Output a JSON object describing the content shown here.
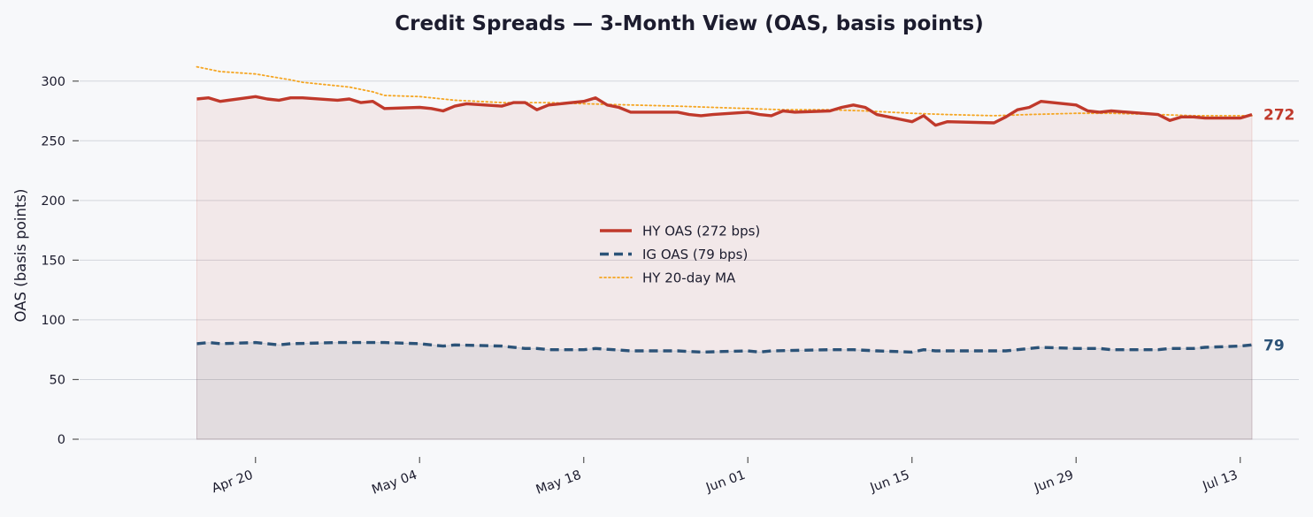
{
  "chart_data": {
    "type": "line",
    "title": "Credit Spreads — 3-Month View (OAS, basis points)",
    "ylabel": "OAS (basis points)",
    "xlabel": "",
    "ylim": [
      0,
      325
    ],
    "xlim": [
      "2026-04-05",
      "2026-07-18"
    ],
    "y_ticks": [
      0,
      50,
      100,
      150,
      200,
      250,
      300
    ],
    "y_tick_labels": [
      "0",
      "50",
      "100",
      "150",
      "200",
      "250",
      "300"
    ],
    "x_ticks": [
      "2026-04-20",
      "2026-05-04",
      "2026-05-18",
      "2026-06-01",
      "2026-06-15",
      "2026-06-29",
      "2026-07-13"
    ],
    "x_tick_labels": [
      "Apr 20",
      "May 04",
      "May 18",
      "Jun 01",
      "Jun 15",
      "Jun 29",
      "Jul 13"
    ],
    "grid": true,
    "legend_position": "center",
    "series": [
      {
        "name": "HY OAS  (272 bps)",
        "style": "solid",
        "color": "#c0392b",
        "end_label": "272",
        "fill": true,
        "points": [
          [
            "2026-04-15",
            285
          ],
          [
            "2026-04-16",
            286
          ],
          [
            "2026-04-17",
            283
          ],
          [
            "2026-04-20",
            287
          ],
          [
            "2026-04-21",
            285
          ],
          [
            "2026-04-22",
            284
          ],
          [
            "2026-04-23",
            286
          ],
          [
            "2026-04-24",
            286
          ],
          [
            "2026-04-27",
            284
          ],
          [
            "2026-04-28",
            285
          ],
          [
            "2026-04-29",
            282
          ],
          [
            "2026-04-30",
            283
          ],
          [
            "2026-05-01",
            277
          ],
          [
            "2026-05-04",
            278
          ],
          [
            "2026-05-05",
            277
          ],
          [
            "2026-05-06",
            275
          ],
          [
            "2026-05-07",
            279
          ],
          [
            "2026-05-08",
            281
          ],
          [
            "2026-05-11",
            279
          ],
          [
            "2026-05-12",
            282
          ],
          [
            "2026-05-13",
            282
          ],
          [
            "2026-05-14",
            276
          ],
          [
            "2026-05-15",
            280
          ],
          [
            "2026-05-18",
            283
          ],
          [
            "2026-05-19",
            286
          ],
          [
            "2026-05-20",
            280
          ],
          [
            "2026-05-21",
            278
          ],
          [
            "2026-05-22",
            274
          ],
          [
            "2026-05-25",
            274
          ],
          [
            "2026-05-26",
            274
          ],
          [
            "2026-05-27",
            272
          ],
          [
            "2026-05-28",
            271
          ],
          [
            "2026-05-29",
            272
          ],
          [
            "2026-06-01",
            274
          ],
          [
            "2026-06-02",
            272
          ],
          [
            "2026-06-03",
            271
          ],
          [
            "2026-06-04",
            275
          ],
          [
            "2026-06-05",
            274
          ],
          [
            "2026-06-08",
            275
          ],
          [
            "2026-06-09",
            278
          ],
          [
            "2026-06-10",
            280
          ],
          [
            "2026-06-11",
            278
          ],
          [
            "2026-06-12",
            272
          ],
          [
            "2026-06-15",
            266
          ],
          [
            "2026-06-16",
            271
          ],
          [
            "2026-06-17",
            263
          ],
          [
            "2026-06-18",
            266
          ],
          [
            "2026-06-22",
            265
          ],
          [
            "2026-06-23",
            270
          ],
          [
            "2026-06-24",
            276
          ],
          [
            "2026-06-25",
            278
          ],
          [
            "2026-06-26",
            283
          ],
          [
            "2026-06-29",
            280
          ],
          [
            "2026-06-30",
            275
          ],
          [
            "2026-07-01",
            274
          ],
          [
            "2026-07-02",
            275
          ],
          [
            "2026-07-06",
            272
          ],
          [
            "2026-07-07",
            267
          ],
          [
            "2026-07-08",
            270
          ],
          [
            "2026-07-09",
            270
          ],
          [
            "2026-07-10",
            269
          ],
          [
            "2026-07-13",
            269
          ],
          [
            "2026-07-14",
            272
          ]
        ]
      },
      {
        "name": "IG OAS  (79 bps)",
        "style": "dashed",
        "color": "#2c5378",
        "end_label": "79",
        "fill": true,
        "points": [
          [
            "2026-04-15",
            80
          ],
          [
            "2026-04-16",
            81
          ],
          [
            "2026-04-17",
            80
          ],
          [
            "2026-04-20",
            81
          ],
          [
            "2026-04-22",
            79
          ],
          [
            "2026-04-23",
            80
          ],
          [
            "2026-04-27",
            81
          ],
          [
            "2026-04-30",
            81
          ],
          [
            "2026-05-01",
            81
          ],
          [
            "2026-05-04",
            80
          ],
          [
            "2026-05-06",
            78
          ],
          [
            "2026-05-07",
            79
          ],
          [
            "2026-05-11",
            78
          ],
          [
            "2026-05-13",
            76
          ],
          [
            "2026-05-14",
            76
          ],
          [
            "2026-05-15",
            75
          ],
          [
            "2026-05-18",
            75
          ],
          [
            "2026-05-19",
            76
          ],
          [
            "2026-05-22",
            74
          ],
          [
            "2026-05-26",
            74
          ],
          [
            "2026-05-28",
            73
          ],
          [
            "2026-06-01",
            74
          ],
          [
            "2026-06-02",
            73
          ],
          [
            "2026-06-03",
            74
          ],
          [
            "2026-06-08",
            75
          ],
          [
            "2026-06-10",
            75
          ],
          [
            "2026-06-12",
            74
          ],
          [
            "2026-06-15",
            73
          ],
          [
            "2026-06-16",
            75
          ],
          [
            "2026-06-17",
            74
          ],
          [
            "2026-06-22",
            74
          ],
          [
            "2026-06-23",
            74
          ],
          [
            "2026-06-26",
            77
          ],
          [
            "2026-06-29",
            76
          ],
          [
            "2026-07-01",
            76
          ],
          [
            "2026-07-02",
            75
          ],
          [
            "2026-07-06",
            75
          ],
          [
            "2026-07-07",
            76
          ],
          [
            "2026-07-09",
            76
          ],
          [
            "2026-07-10",
            77
          ],
          [
            "2026-07-13",
            78
          ],
          [
            "2026-07-14",
            79
          ]
        ]
      },
      {
        "name": "HY 20-day MA",
        "style": "dotted",
        "color": "#f5a623",
        "points": [
          [
            "2026-04-15",
            312
          ],
          [
            "2026-04-17",
            308
          ],
          [
            "2026-04-20",
            306
          ],
          [
            "2026-04-23",
            301
          ],
          [
            "2026-04-24",
            299
          ],
          [
            "2026-04-28",
            295
          ],
          [
            "2026-04-30",
            291
          ],
          [
            "2026-05-01",
            288
          ],
          [
            "2026-05-04",
            287
          ],
          [
            "2026-05-07",
            284
          ],
          [
            "2026-05-11",
            282
          ],
          [
            "2026-05-15",
            282
          ],
          [
            "2026-05-18",
            281
          ],
          [
            "2026-05-22",
            280
          ],
          [
            "2026-05-26",
            279
          ],
          [
            "2026-05-29",
            278
          ],
          [
            "2026-06-01",
            277
          ],
          [
            "2026-06-04",
            276
          ],
          [
            "2026-06-08",
            276
          ],
          [
            "2026-06-11",
            275
          ],
          [
            "2026-06-15",
            273
          ],
          [
            "2026-06-18",
            272
          ],
          [
            "2026-06-22",
            271
          ],
          [
            "2026-06-25",
            272
          ],
          [
            "2026-06-29",
            273
          ],
          [
            "2026-07-02",
            273
          ],
          [
            "2026-07-06",
            272
          ],
          [
            "2026-07-09",
            271
          ],
          [
            "2026-07-14",
            271
          ]
        ]
      }
    ]
  }
}
